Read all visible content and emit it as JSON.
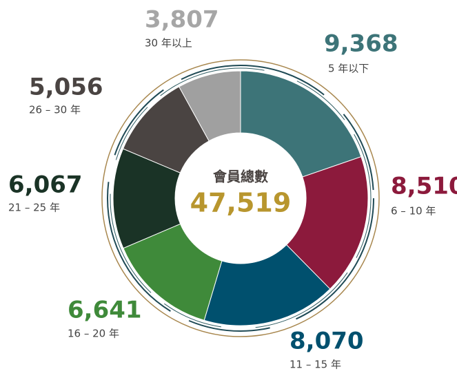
{
  "chart_data": {
    "type": "donut",
    "center_title": "會員總數",
    "total": {
      "value": 47519,
      "label": "47,519"
    },
    "categories": [
      "5 年以下",
      "6 – 10 年",
      "11 – 15 年",
      "16 – 20 年",
      "21 – 25 年",
      "26 – 30 年",
      "30 年以上"
    ],
    "values": [
      9368,
      8510,
      8070,
      6641,
      6067,
      5056,
      3807
    ],
    "value_labels": [
      "9,368",
      "8,510",
      "8,070",
      "6,641",
      "6,067",
      "5,056",
      "3,807"
    ],
    "colors": [
      "#3d7478",
      "#8c1a3c",
      "#00506e",
      "#3f8a3a",
      "#1a3326",
      "#4a4442",
      "#a0a0a0"
    ]
  }
}
